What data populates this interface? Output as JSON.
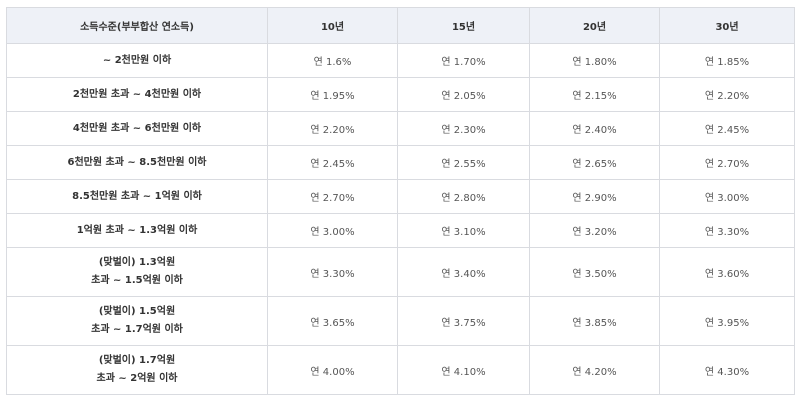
{
  "table": {
    "headers": [
      "소득수준(부부합산 연소득)",
      "10년",
      "15년",
      "20년",
      "30년"
    ],
    "rows": [
      {
        "income": [
          "~ 2천만원 이하"
        ],
        "rates": [
          "연 1.6%",
          "연 1.70%",
          "연 1.80%",
          "연 1.85%"
        ]
      },
      {
        "income": [
          "2천만원 초과 ~ 4천만원 이하"
        ],
        "rates": [
          "연 1.95%",
          "연 2.05%",
          "연 2.15%",
          "연 2.20%"
        ]
      },
      {
        "income": [
          "4천만원 초과 ~ 6천만원 이하"
        ],
        "rates": [
          "연 2.20%",
          "연 2.30%",
          "연 2.40%",
          "연 2.45%"
        ]
      },
      {
        "income": [
          "6천만원 초과 ~ 8.5천만원 이하"
        ],
        "rates": [
          "연 2.45%",
          "연 2.55%",
          "연 2.65%",
          "연 2.70%"
        ]
      },
      {
        "income": [
          "8.5천만원 초과 ~ 1억원 이하"
        ],
        "rates": [
          "연 2.70%",
          "연 2.80%",
          "연 2.90%",
          "연 3.00%"
        ]
      },
      {
        "income": [
          "1억원 초과 ~ 1.3억원 이하"
        ],
        "rates": [
          "연 3.00%",
          "연 3.10%",
          "연 3.20%",
          "연 3.30%"
        ]
      },
      {
        "income": [
          "(맞벌이) 1.3억원",
          "초과 ~ 1.5억원 이하"
        ],
        "rates": [
          "연 3.30%",
          "연 3.40%",
          "연 3.50%",
          "연 3.60%"
        ]
      },
      {
        "income": [
          "(맞벌이) 1.5억원",
          "초과 ~ 1.7억원 이하"
        ],
        "rates": [
          "연 3.65%",
          "연 3.75%",
          "연 3.85%",
          "연 3.95%"
        ]
      },
      {
        "income": [
          "(맞벌이) 1.7억원",
          "초과 ~ 2억원 이하"
        ],
        "rates": [
          "연 4.00%",
          "연 4.10%",
          "연 4.20%",
          "연 4.30%"
        ]
      }
    ]
  }
}
